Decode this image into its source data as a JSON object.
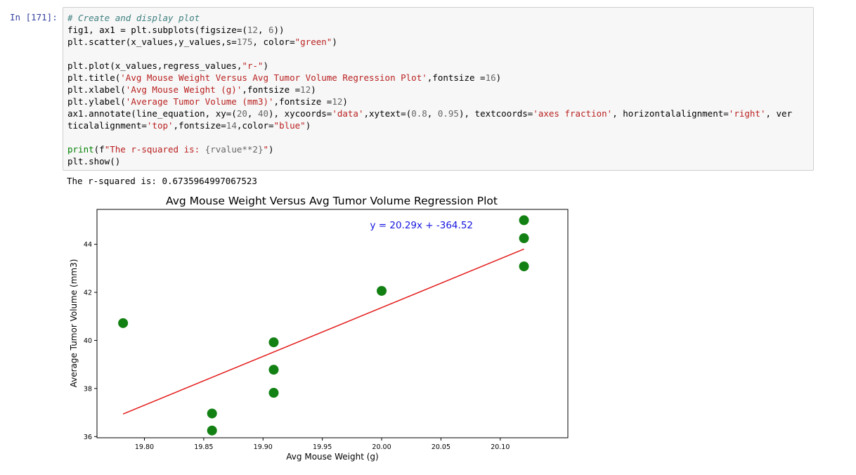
{
  "cell": {
    "prompt": "In [171]:",
    "code_lines": [
      [
        {
          "t": "# Create and display plot",
          "c": "comment"
        }
      ],
      [
        {
          "t": "fig1, ax1 = plt.subplots(figsize=("
        },
        {
          "t": "12",
          "c": "num"
        },
        {
          "t": ", "
        },
        {
          "t": "6",
          "c": "num"
        },
        {
          "t": "))"
        }
      ],
      [
        {
          "t": "plt.scatter(x_values,y_values,s="
        },
        {
          "t": "175",
          "c": "num"
        },
        {
          "t": ", color="
        },
        {
          "t": "\"green\"",
          "c": "str"
        },
        {
          "t": ")"
        }
      ],
      [],
      [
        {
          "t": "plt.plot(x_values,regress_values,"
        },
        {
          "t": "\"r-\"",
          "c": "str"
        },
        {
          "t": ")"
        }
      ],
      [
        {
          "t": "plt.title("
        },
        {
          "t": "'Avg Mouse Weight Versus Avg Tumor Volume Regression Plot'",
          "c": "str"
        },
        {
          "t": ",fontsize ="
        },
        {
          "t": "16",
          "c": "num"
        },
        {
          "t": ")"
        }
      ],
      [
        {
          "t": "plt.xlabel("
        },
        {
          "t": "'Avg Mouse Weight (g)'",
          "c": "str"
        },
        {
          "t": ",fontsize ="
        },
        {
          "t": "12",
          "c": "num"
        },
        {
          "t": ")"
        }
      ],
      [
        {
          "t": "plt.ylabel("
        },
        {
          "t": "'Average Tumor Volume (mm3)'",
          "c": "str"
        },
        {
          "t": ",fontsize ="
        },
        {
          "t": "12",
          "c": "num"
        },
        {
          "t": ")"
        }
      ],
      [
        {
          "t": "ax1.annotate(line_equation, xy=("
        },
        {
          "t": "20",
          "c": "num"
        },
        {
          "t": ", "
        },
        {
          "t": "40",
          "c": "num"
        },
        {
          "t": "), xycoords="
        },
        {
          "t": "'data'",
          "c": "str"
        },
        {
          "t": ",xytext=("
        },
        {
          "t": "0.8",
          "c": "num"
        },
        {
          "t": ", "
        },
        {
          "t": "0.95",
          "c": "num"
        },
        {
          "t": "), textcoords="
        },
        {
          "t": "'axes fraction'",
          "c": "str"
        },
        {
          "t": ", horizontalalignment="
        },
        {
          "t": "'right'",
          "c": "str"
        },
        {
          "t": ", ver"
        }
      ],
      [
        {
          "t": "ticalalignment="
        },
        {
          "t": "'top'",
          "c": "str"
        },
        {
          "t": ",fontsize="
        },
        {
          "t": "14",
          "c": "num"
        },
        {
          "t": ",color="
        },
        {
          "t": "\"blue\"",
          "c": "str"
        },
        {
          "t": ")"
        }
      ],
      [],
      [
        {
          "t": "print",
          "c": "kw"
        },
        {
          "t": "(f"
        },
        {
          "t": "\"The r-squared is: ",
          "c": "str"
        },
        {
          "t": "{rvalue**2}",
          "c": "num"
        },
        {
          "t": "\"",
          "c": "str"
        },
        {
          "t": ")"
        }
      ],
      [
        {
          "t": "plt.show()"
        }
      ]
    ]
  },
  "output": {
    "text": "The r-squared is: 0.6735964997067523"
  },
  "chart_data": {
    "type": "scatter",
    "title": "Avg Mouse Weight Versus Avg Tumor Volume Regression Plot",
    "xlabel": "Avg Mouse Weight (g)",
    "ylabel": "Average Tumor Volume (mm3)",
    "xlim": [
      19.76,
      20.157
    ],
    "ylim": [
      35.95,
      45.45
    ],
    "xticks": [
      19.8,
      19.85,
      19.9,
      19.95,
      20.0,
      20.05,
      20.1
    ],
    "xtick_labels": [
      "19.80",
      "19.85",
      "19.90",
      "19.95",
      "20.00",
      "20.05",
      "20.10"
    ],
    "yticks": [
      36,
      38,
      40,
      42,
      44
    ],
    "ytick_labels": [
      "36",
      "38",
      "40",
      "42",
      "44"
    ],
    "grid": false,
    "point_color": "#138013",
    "line_color": "#e31a1a",
    "annotation_color": "#1515e0",
    "annotation": "y = 20.29x + -364.52",
    "points": [
      {
        "x": 19.782,
        "y": 40.72
      },
      {
        "x": 19.857,
        "y": 36.96
      },
      {
        "x": 19.857,
        "y": 36.25
      },
      {
        "x": 19.909,
        "y": 39.92
      },
      {
        "x": 19.909,
        "y": 38.78
      },
      {
        "x": 19.909,
        "y": 37.82
      },
      {
        "x": 20.0,
        "y": 42.06
      },
      {
        "x": 20.12,
        "y": 45.0
      },
      {
        "x": 20.12,
        "y": 44.25
      },
      {
        "x": 20.12,
        "y": 43.08
      }
    ],
    "regression_line": [
      {
        "x": 19.782,
        "y": 36.94
      },
      {
        "x": 20.12,
        "y": 43.8
      }
    ]
  }
}
